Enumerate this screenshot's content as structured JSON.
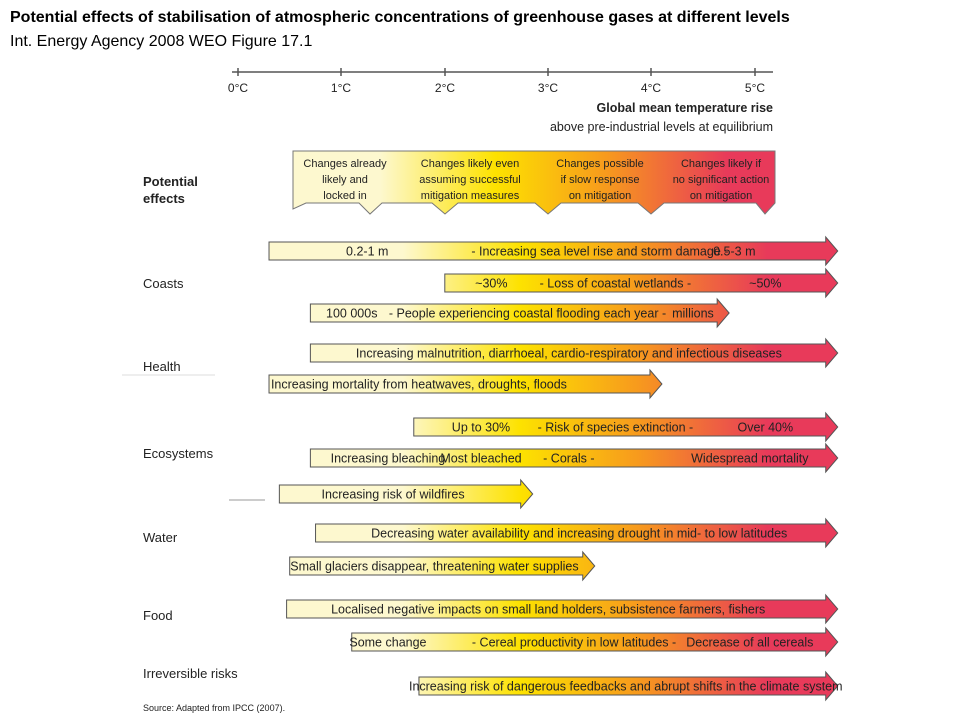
{
  "title": "Potential effects of stabilisation of atmospheric concentrations of greenhouse gases at different levels",
  "subtitle": "Int. Energy Agency 2008 WEO Figure 17.1",
  "axis": {
    "ticks": [
      "0°C",
      "1°C",
      "2°C",
      "3°C",
      "4°C",
      "5°C"
    ],
    "label_line1": "Global mean temperature rise",
    "label_line2": "above pre-industrial levels at equilibrium"
  },
  "potential_effects": {
    "label_line1": "Potential",
    "label_line2": "effects",
    "columns": [
      {
        "lines": [
          "Changes already",
          "likely and",
          "locked in"
        ]
      },
      {
        "lines": [
          "Changes likely even",
          "assuming successful",
          "mitigation measures"
        ]
      },
      {
        "lines": [
          "Changes possible",
          "if slow response",
          "on mitigation"
        ]
      },
      {
        "lines": [
          "Changes likely if",
          "no significant action",
          "on mitigation"
        ]
      }
    ]
  },
  "categories": {
    "coasts": "Coasts",
    "health": "Health",
    "ecosystems": "Ecosystems",
    "water": "Water",
    "food": "Food",
    "irreversible": "Irreversible risks"
  },
  "arrows": [
    {
      "id": "sea-level",
      "start": 0.3,
      "end": 5.8,
      "texts": [
        {
          "at": 1.25,
          "text": "0.2-1 m"
        },
        {
          "at": 3.5,
          "text": "- Increasing sea level rise and storm damage -"
        },
        {
          "at": 4.8,
          "text": "0.5-3 m"
        }
      ]
    },
    {
      "id": "wetlands",
      "start": 2.0,
      "end": 5.8,
      "texts": [
        {
          "at": 2.45,
          "text": "~30%"
        },
        {
          "at": 3.65,
          "text": "- Loss of coastal wetlands -"
        },
        {
          "at": 5.1,
          "text": "~50%"
        }
      ]
    },
    {
      "id": "coastal-flooding",
      "start": 0.7,
      "end": 4.75,
      "texts": [
        {
          "at": 1.1,
          "text": "100 000s"
        },
        {
          "at": 2.8,
          "text": "- People experiencing coastal flooding each year -"
        },
        {
          "at": 4.4,
          "text": "millions"
        }
      ]
    },
    {
      "id": "malnutrition",
      "start": 0.7,
      "end": 5.8,
      "texts": [
        {
          "at": 3.2,
          "text": "Increasing malnutrition, diarrhoeal, cardio-respiratory and infectious diseases"
        }
      ]
    },
    {
      "id": "heatwave-mortality",
      "start": 0.3,
      "end": 4.1,
      "texts": [
        {
          "at": 1.75,
          "text": "Increasing mortality from heatwaves, droughts, floods"
        }
      ]
    },
    {
      "id": "species-extinction",
      "start": 1.7,
      "end": 5.8,
      "texts": [
        {
          "at": 2.35,
          "text": "Up to 30%"
        },
        {
          "at": 3.65,
          "text": "- Risk of species extinction -"
        },
        {
          "at": 5.1,
          "text": "Over 40%"
        }
      ]
    },
    {
      "id": "corals",
      "start": 0.7,
      "end": 5.8,
      "texts": [
        {
          "at": 1.45,
          "text": "Increasing bleaching"
        },
        {
          "at": 2.35,
          "text": "Most bleached"
        },
        {
          "at": 3.2,
          "text": "- Corals -"
        },
        {
          "at": 4.95,
          "text": "Widespread mortality"
        }
      ]
    },
    {
      "id": "wildfires",
      "start": 0.4,
      "end": 2.85,
      "texts": [
        {
          "at": 1.5,
          "text": "Increasing risk of wildfires"
        }
      ]
    },
    {
      "id": "water-availability",
      "start": 0.75,
      "end": 5.8,
      "texts": [
        {
          "at": 3.3,
          "text": "Decreasing water availability and increasing drought in mid- to low latitudes"
        }
      ]
    },
    {
      "id": "glaciers",
      "start": 0.5,
      "end": 3.45,
      "texts": [
        {
          "at": 1.9,
          "text": "Small glaciers disappear, threatening water supplies"
        }
      ]
    },
    {
      "id": "smallholders",
      "start": 0.47,
      "end": 5.8,
      "texts": [
        {
          "at": 3.0,
          "text": "Localised negative impacts on small land holders, subsistence farmers, fishers"
        }
      ]
    },
    {
      "id": "cereal",
      "start": 1.1,
      "end": 5.8,
      "texts": [
        {
          "at": 1.45,
          "text": "Some change"
        },
        {
          "at": 3.25,
          "text": "- Cereal productivity in low latitudes -"
        },
        {
          "at": 4.95,
          "text": "Decrease of all cereals"
        }
      ]
    },
    {
      "id": "dangerous-feedbacks",
      "start": 1.75,
      "end": 5.8,
      "texts": [
        {
          "at": 3.75,
          "text": "Increasing risk of dangerous feedbacks and abrupt shifts in the climate system"
        }
      ]
    }
  ],
  "source": "Source: Adapted from IPCC (2007).",
  "colors": {
    "light": "#fdf8cf",
    "yellow": "#fde200",
    "orange": "#f79a1d",
    "red": "#e83a5a",
    "outline": "#555555"
  }
}
